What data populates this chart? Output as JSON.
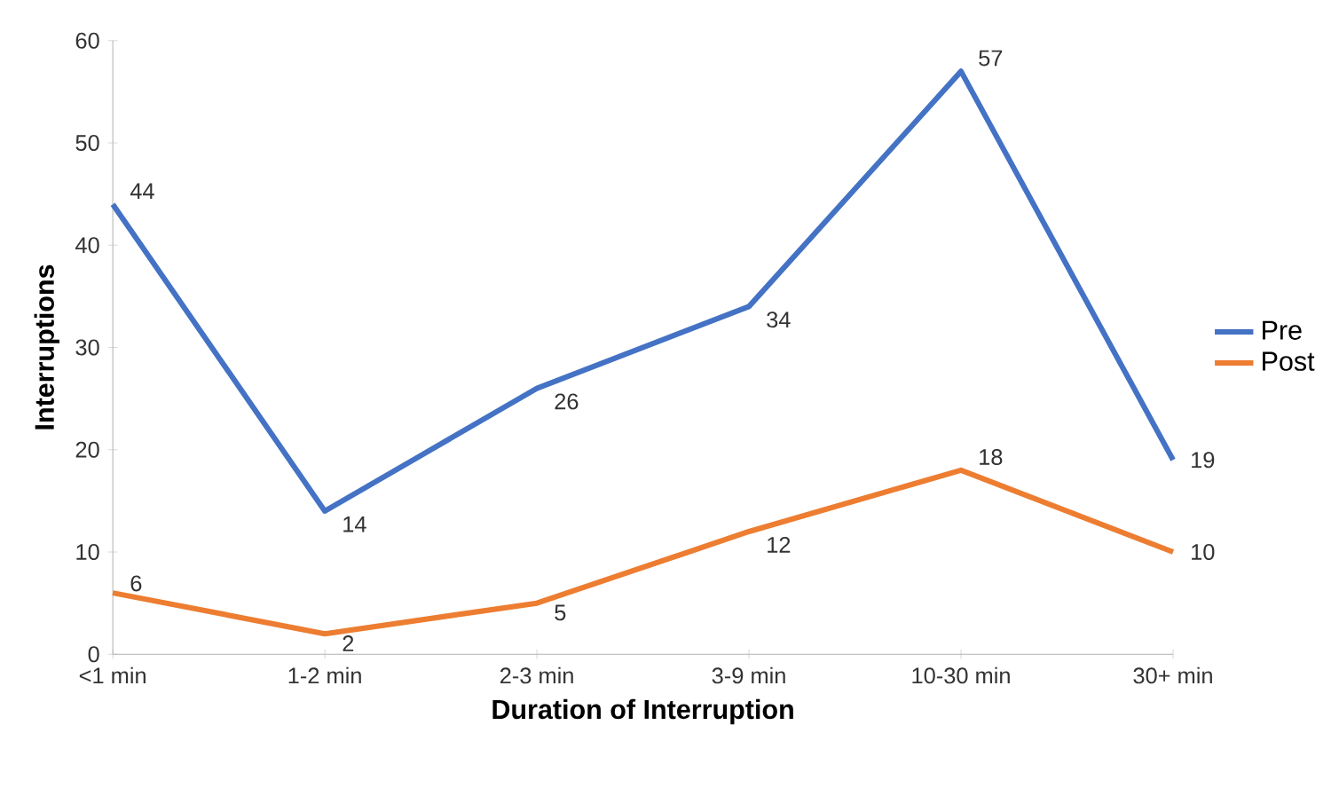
{
  "chart_data": {
    "type": "line",
    "xlabel": "Duration of Interruption",
    "ylabel": "Interruptions",
    "categories": [
      "<1 min",
      "1-2 min",
      "2-3 min",
      "3-9 min",
      "10-30 min",
      "30+ min"
    ],
    "series": [
      {
        "name": "Pre",
        "color": "#4472c4",
        "values": [
          44,
          14,
          26,
          34,
          57,
          19
        ]
      },
      {
        "name": "Post",
        "color": "#ed7d31",
        "values": [
          6,
          2,
          5,
          12,
          18,
          10
        ]
      }
    ],
    "ylim": [
      0,
      60
    ],
    "yticks": [
      0,
      10,
      20,
      30,
      40,
      50,
      60
    ],
    "data_labels": true,
    "legend": "right",
    "grid": false,
    "marker": "none",
    "line_style": "solid"
  }
}
